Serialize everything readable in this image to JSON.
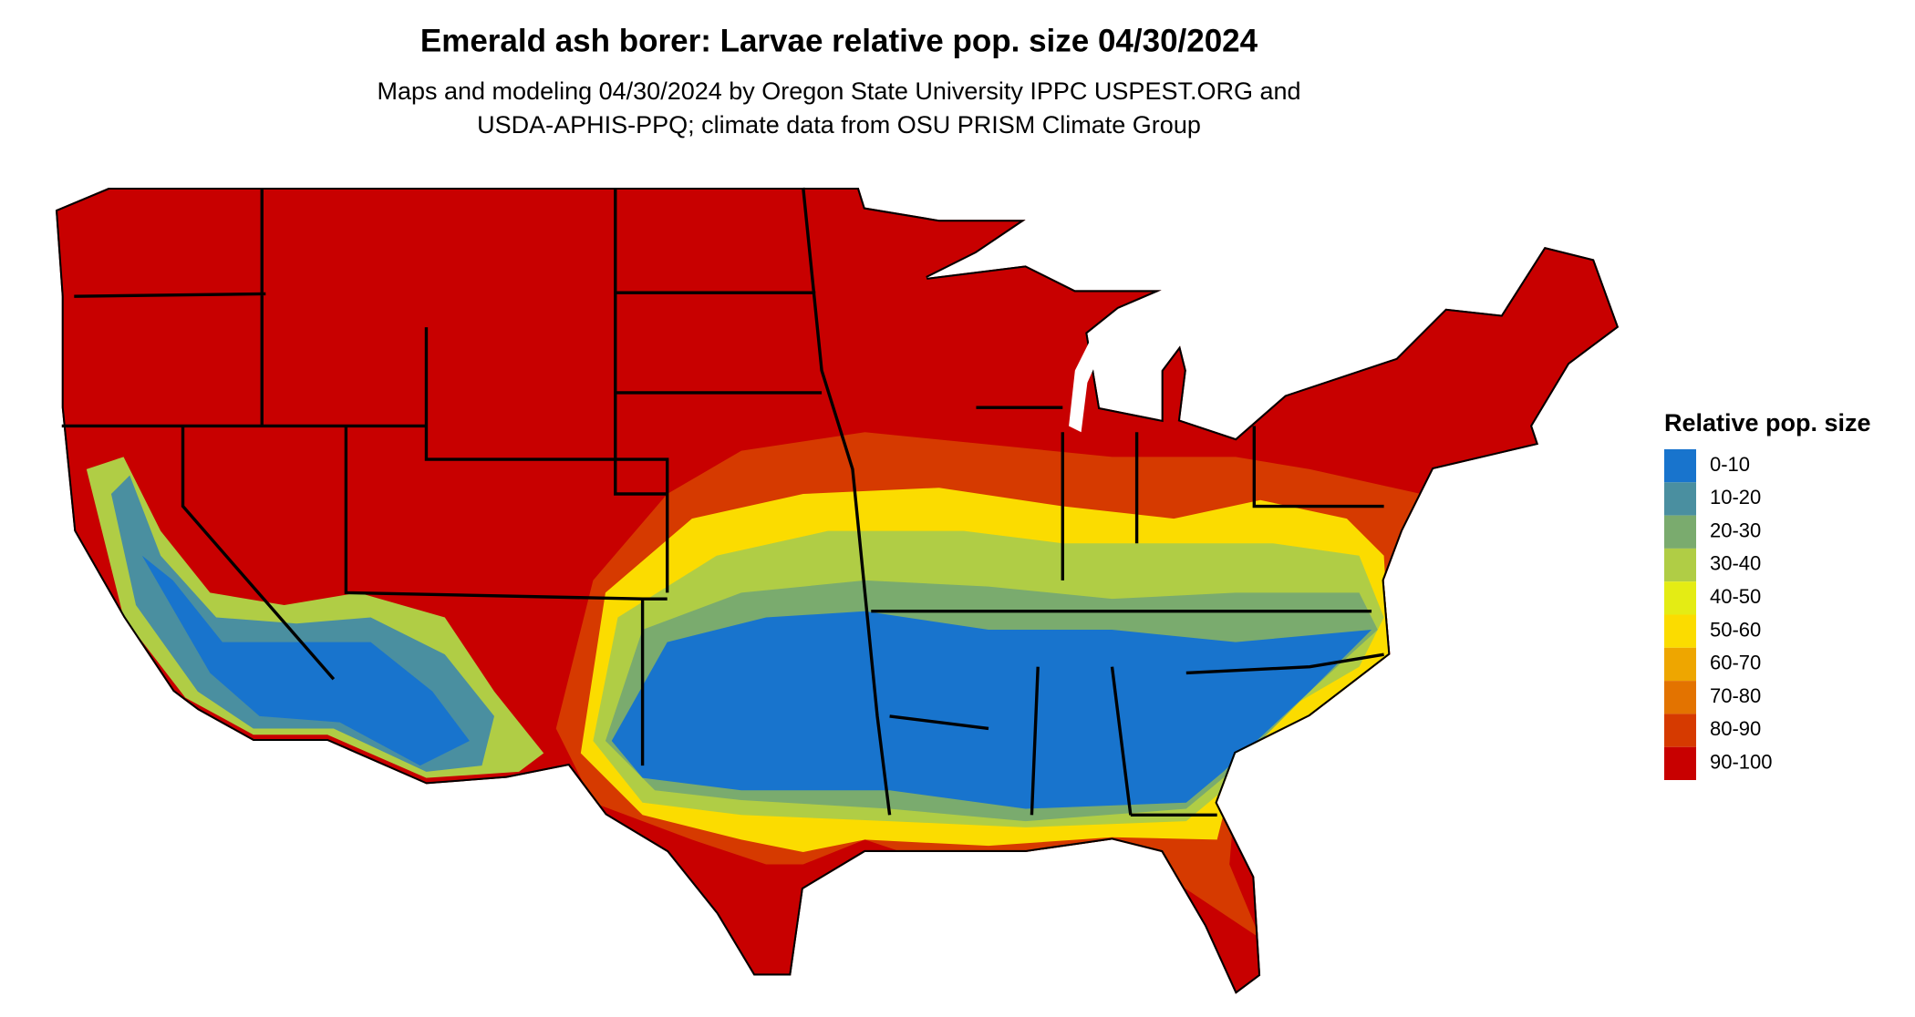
{
  "header": {
    "title": "Emerald ash borer: Larvae relative pop. size 04/30/2024",
    "subtitle": [
      "Maps and modeling 04/30/2024 by Oregon State University IPPC USPEST.ORG and",
      "USDA-APHIS-PPQ; climate data from OSU PRISM Climate Group"
    ]
  },
  "legend": {
    "title": "Relative pop. size",
    "items": [
      {
        "label": "0-10",
        "color": "#1874cd"
      },
      {
        "label": "10-20",
        "color": "#4a8fa0"
      },
      {
        "label": "20-30",
        "color": "#7aab6e"
      },
      {
        "label": "30-40",
        "color": "#b0cd45"
      },
      {
        "label": "40-50",
        "color": "#e4ec14"
      },
      {
        "label": "50-60",
        "color": "#fbdc00"
      },
      {
        "label": "60-70",
        "color": "#eea600"
      },
      {
        "label": "70-80",
        "color": "#e37300"
      },
      {
        "label": "80-90",
        "color": "#d63a00"
      },
      {
        "label": "90-100",
        "color": "#c80000"
      }
    ]
  }
}
